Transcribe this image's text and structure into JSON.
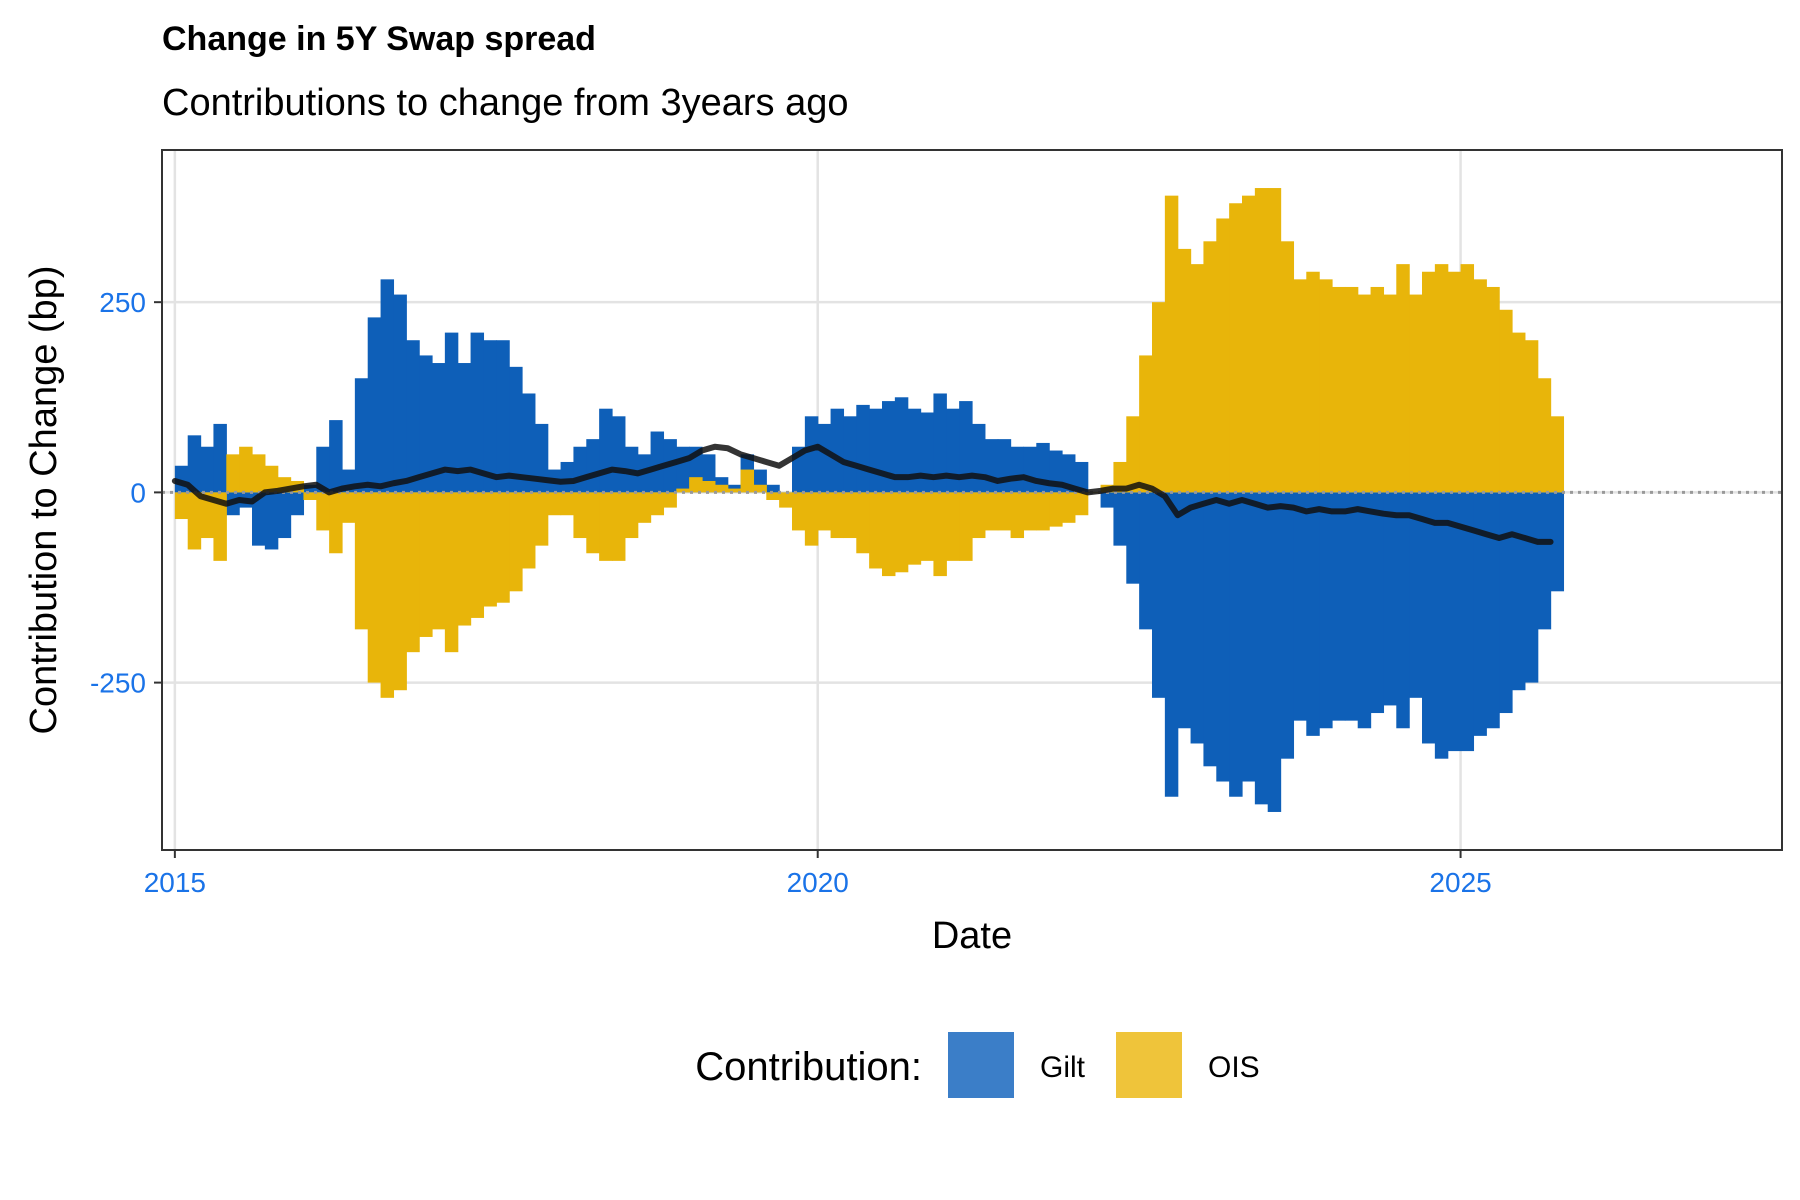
{
  "chart_data": {
    "type": "area",
    "title": "Change in 5Y Swap spread",
    "subtitle": "Contributions to change from 3years ago",
    "xlabel": "Date",
    "ylabel": "Contribution to Change (bp)",
    "xlim": [
      2014.9,
      2027.5
    ],
    "ylim": [
      -470,
      450
    ],
    "x_ticks": [
      2015,
      2020,
      2025
    ],
    "x_tick_labels": [
      "2015",
      "2020",
      "2025"
    ],
    "y_ticks": [
      -250,
      0,
      250
    ],
    "y_tick_labels": [
      "-250",
      "0",
      "250"
    ],
    "grid": true,
    "legend_position": "bottom",
    "legend_title": "Contribution:",
    "x": [
      2015.0,
      2015.1,
      2015.2,
      2015.3,
      2015.4,
      2015.5,
      2015.6,
      2015.7,
      2015.8,
      2015.9,
      2016.0,
      2016.1,
      2016.2,
      2016.3,
      2016.4,
      2016.5,
      2016.6,
      2016.7,
      2016.8,
      2016.9,
      2017.0,
      2017.1,
      2017.2,
      2017.3,
      2017.4,
      2017.5,
      2017.6,
      2017.7,
      2017.8,
      2017.9,
      2018.0,
      2018.1,
      2018.2,
      2018.3,
      2018.4,
      2018.5,
      2018.6,
      2018.7,
      2018.8,
      2018.9,
      2019.0,
      2019.1,
      2019.2,
      2019.3,
      2019.4,
      2019.5,
      2019.6,
      2019.7,
      2019.8,
      2019.9,
      2020.0,
      2020.1,
      2020.2,
      2020.3,
      2020.4,
      2020.5,
      2020.6,
      2020.7,
      2020.8,
      2020.9,
      2021.0,
      2021.1,
      2021.2,
      2021.3,
      2021.4,
      2021.5,
      2021.6,
      2021.7,
      2021.8,
      2021.9,
      2022.0,
      2022.1,
      2022.2,
      2022.3,
      2022.4,
      2022.5,
      2022.6,
      2022.7,
      2022.8,
      2022.9,
      2023.0,
      2023.1,
      2023.2,
      2023.3,
      2023.4,
      2023.5,
      2023.6,
      2023.7,
      2023.8,
      2023.9,
      2024.0,
      2024.1,
      2024.2,
      2024.3,
      2024.4,
      2024.5,
      2024.6,
      2024.7,
      2024.8,
      2024.9,
      2025.0,
      2025.1,
      2025.2,
      2025.3,
      2025.4,
      2025.5,
      2025.6,
      2025.7
    ],
    "series": [
      {
        "name": "Gilt",
        "color": "#0e5fb8",
        "values": [
          35,
          75,
          60,
          90,
          -30,
          -20,
          -70,
          -75,
          -60,
          -30,
          10,
          60,
          95,
          30,
          150,
          230,
          280,
          260,
          200,
          180,
          170,
          210,
          170,
          210,
          200,
          200,
          165,
          130,
          90,
          30,
          40,
          60,
          70,
          110,
          100,
          60,
          50,
          80,
          70,
          60,
          60,
          50,
          20,
          10,
          50,
          30,
          10,
          0,
          60,
          100,
          90,
          110,
          100,
          115,
          110,
          120,
          125,
          110,
          105,
          130,
          110,
          120,
          90,
          70,
          70,
          60,
          60,
          65,
          55,
          50,
          40,
          0,
          -20,
          -70,
          -120,
          -180,
          -270,
          -400,
          -310,
          -330,
          -360,
          -380,
          -400,
          -380,
          -410,
          -420,
          -350,
          -300,
          -320,
          -310,
          -300,
          -300,
          -310,
          -290,
          -280,
          -310,
          -270,
          -330,
          -350,
          -340,
          -340,
          -320,
          -310,
          -290,
          -260,
          -250,
          -180,
          -130
        ]
      },
      {
        "name": "OIS",
        "color": "#e8b50a",
        "values": [
          -35,
          -75,
          -60,
          -90,
          50,
          60,
          50,
          35,
          20,
          15,
          -10,
          -50,
          -80,
          -40,
          -180,
          -250,
          -270,
          -260,
          -210,
          -190,
          -180,
          -210,
          -175,
          -165,
          -150,
          -145,
          -130,
          -100,
          -70,
          -30,
          -30,
          -60,
          -80,
          -90,
          -90,
          -60,
          -40,
          -30,
          -20,
          5,
          20,
          15,
          10,
          5,
          30,
          10,
          -10,
          -20,
          -50,
          -70,
          -50,
          -60,
          -60,
          -80,
          -100,
          -110,
          -105,
          -95,
          -90,
          -110,
          -90,
          -90,
          -60,
          -50,
          -50,
          -60,
          -50,
          -50,
          -45,
          -40,
          -30,
          0,
          10,
          40,
          100,
          180,
          250,
          390,
          320,
          300,
          330,
          360,
          380,
          390,
          400,
          400,
          330,
          280,
          290,
          280,
          270,
          270,
          260,
          270,
          260,
          300,
          260,
          290,
          300,
          290,
          300,
          280,
          270,
          240,
          210,
          200,
          150,
          100
        ]
      },
      {
        "name": "",
        "color": "#111111",
        "values": [
          15,
          10,
          -5,
          -10,
          -15,
          -10,
          -12,
          0,
          2,
          5,
          8,
          10,
          0,
          5,
          8,
          10,
          8,
          12,
          15,
          20,
          25,
          30,
          28,
          30,
          25,
          20,
          22,
          20,
          18,
          16,
          14,
          15,
          20,
          25,
          30,
          28,
          25,
          30,
          35,
          40,
          45,
          55,
          60,
          58,
          50,
          45,
          40,
          35,
          45,
          55,
          60,
          50,
          40,
          35,
          30,
          25,
          20,
          20,
          22,
          20,
          22,
          20,
          22,
          20,
          15,
          18,
          20,
          15,
          12,
          10,
          5,
          0,
          2,
          5,
          5,
          10,
          5,
          -5,
          -30,
          -20,
          -15,
          -10,
          -15,
          -10,
          -15,
          -20,
          -18,
          -20,
          -25,
          -22,
          -25,
          -25,
          -22,
          -25,
          -28,
          -30,
          -30,
          -35,
          -40,
          -40,
          -45,
          -50,
          -55,
          -60,
          -55,
          -60,
          -65,
          -65
        ]
      }
    ]
  }
}
